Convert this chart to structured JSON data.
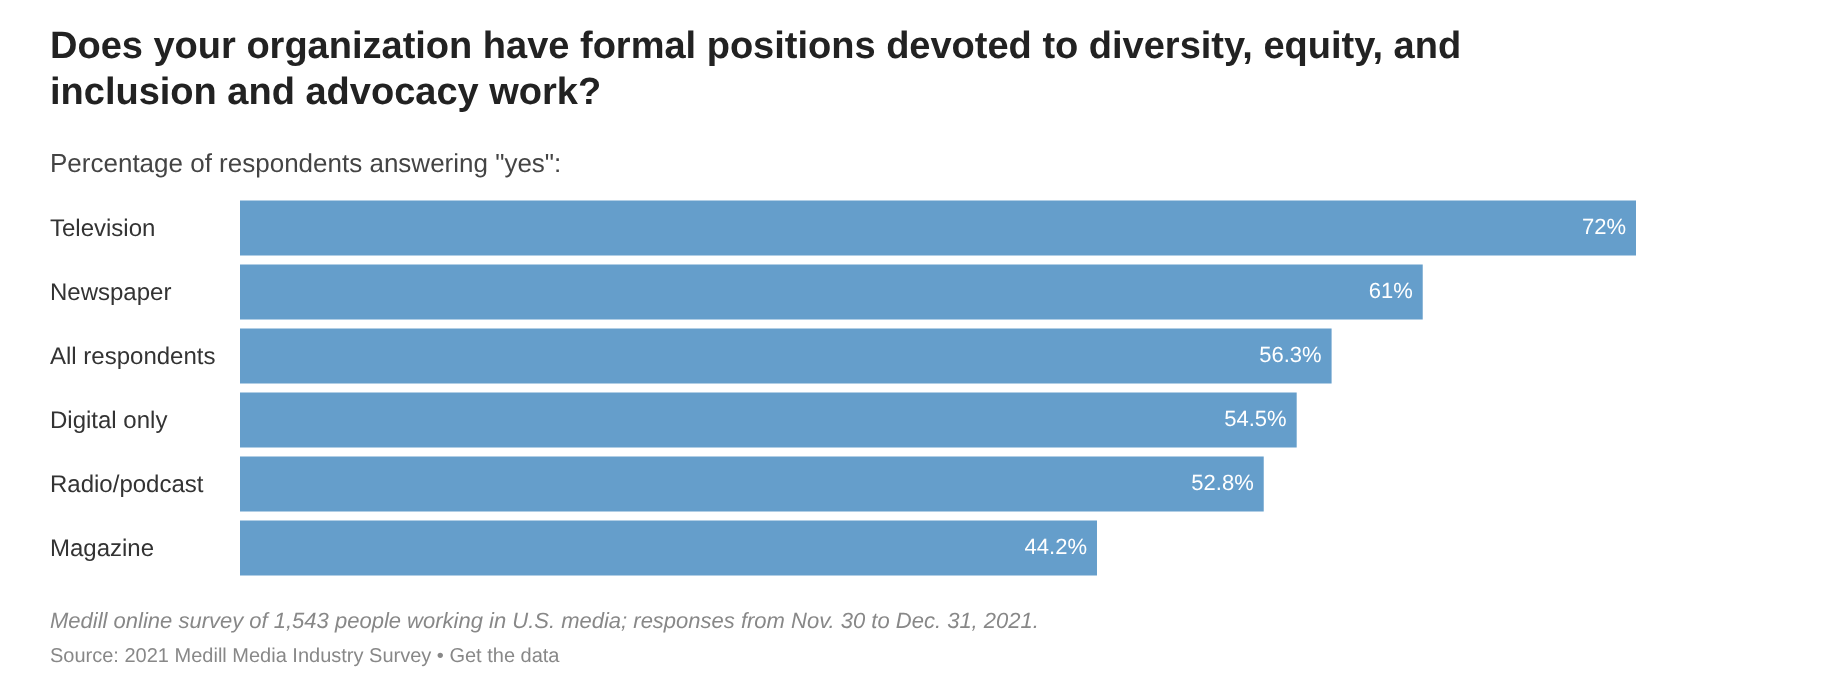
{
  "chart_data": {
    "type": "bar",
    "orientation": "horizontal",
    "title": "Does your organization have formal positions devoted to diversity, equity, and inclusion and advocacy work?",
    "subtitle": "Percentage of respondents answering \"yes\":",
    "categories": [
      "Television",
      "Newspaper",
      "All respondents",
      "Digital only",
      "Radio/podcast",
      "Magazine"
    ],
    "values": [
      72,
      61,
      56.3,
      54.5,
      52.8,
      44.2
    ],
    "value_labels": [
      "72%",
      "61%",
      "56.3%",
      "54.5%",
      "52.8%",
      "44.2%"
    ],
    "color": "#659ecb",
    "annotations": [
      "Medill online survey of 1,543 people working in U.S. media; responses from Nov. 30 to Dec. 31, 2021.",
      "Source: 2021 Medill Media Industry Survey • Get the data"
    ]
  }
}
